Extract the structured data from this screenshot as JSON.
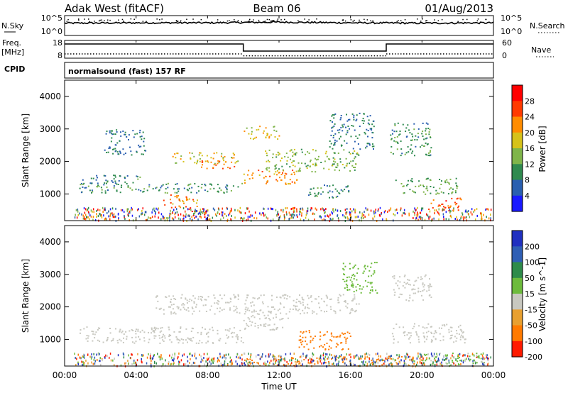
{
  "header": {
    "station": "Adak West (fitACF)",
    "beam": "Beam 06",
    "date": "01/Aug/2013"
  },
  "strip_labels": {
    "nsky": "N.Sky",
    "nsky_ticks": [
      "10^5",
      "10^0"
    ],
    "nsearch": "N.Search",
    "nsearch_ticks": [
      "10^5",
      "10^0"
    ],
    "freq_title": "Freq.",
    "freq_unit": "[MHz]",
    "freq_ticks": [
      "18",
      "8"
    ],
    "nave": "Nave",
    "nave_ticks": [
      "60",
      "0"
    ],
    "cpid": "CPID",
    "cpid_text": "normalsound (fast) 157 RF"
  },
  "chart_data": [
    {
      "type": "line",
      "title": "N.Sky / N.Search",
      "ylabel": "N.Sky",
      "y2label": "N.Search",
      "x_hours": [
        0,
        4,
        8,
        12,
        16,
        20,
        24
      ],
      "sky_level_log": [
        3.2,
        3.3,
        3.3,
        3.5,
        3.3,
        3.2,
        3.3
      ]
    },
    {
      "type": "line",
      "title": "Freq. / Nave",
      "ylabel": "Freq. [MHz]",
      "y2label": "Nave",
      "ylim": [
        8,
        18
      ],
      "freq_segments": [
        {
          "x0": 0,
          "x1": 10,
          "y": 17
        },
        {
          "x0": 10,
          "x1": 18,
          "y": 12
        },
        {
          "x0": 18,
          "x1": 24,
          "y": 17
        }
      ],
      "nave_segments": [
        {
          "x0": 0,
          "x1": 10,
          "y": 12
        },
        {
          "x0": 10,
          "x1": 18,
          "y": 4
        },
        {
          "x0": 18,
          "x1": 24,
          "y": 12
        }
      ]
    },
    {
      "type": "heatmap",
      "title": "Power",
      "ylabel": "Slant Range [km]",
      "ylim": [
        180,
        4500
      ],
      "yticks": [
        "1000",
        "2000",
        "3000",
        "4000"
      ],
      "colorbar_title": "Power [dB]",
      "colorbar_ticks": [
        "4",
        "8",
        "12",
        "16",
        "20",
        "24",
        "28"
      ],
      "colors": [
        "#1a1aff",
        "#2a5fb0",
        "#2f8a4f",
        "#7fb54a",
        "#d6c21a",
        "#ff8c00",
        "#ff3a00",
        "#ff0000"
      ],
      "regions": [
        {
          "x": [
            0.8,
            10.0
          ],
          "y": [
            1050,
            1350
          ],
          "p": 10
        },
        {
          "x": [
            0.8,
            4.2
          ],
          "y": [
            1300,
            1600
          ],
          "p": 9
        },
        {
          "x": [
            5.5,
            7.5
          ],
          "y": [
            600,
            1000
          ],
          "p": 22
        },
        {
          "x": [
            6.6,
            8.0
          ],
          "y": [
            300,
            600
          ],
          "p": 26
        },
        {
          "x": [
            6.0,
            9.8
          ],
          "y": [
            1950,
            2300
          ],
          "p": 18
        },
        {
          "x": [
            7.6,
            9.5
          ],
          "y": [
            1800,
            2050
          ],
          "p": 24
        },
        {
          "x": [
            10.0,
            13.0
          ],
          "y": [
            1300,
            1750
          ],
          "p": 22
        },
        {
          "x": [
            11.2,
            16.5
          ],
          "y": [
            1700,
            2400
          ],
          "p": 14
        },
        {
          "x": [
            10.0,
            12.0
          ],
          "y": [
            2700,
            3100
          ],
          "p": 18
        },
        {
          "x": [
            14.8,
            17.3
          ],
          "y": [
            2400,
            3500
          ],
          "p": 8
        },
        {
          "x": [
            18.5,
            22.0
          ],
          "y": [
            1000,
            1500
          ],
          "p": 12
        },
        {
          "x": [
            20.2,
            22.2
          ],
          "y": [
            500,
            900
          ],
          "p": 25
        },
        {
          "x": [
            18.2,
            20.5
          ],
          "y": [
            2200,
            3200
          ],
          "p": 10
        },
        {
          "x": [
            13.5,
            16.0
          ],
          "y": [
            900,
            1300
          ],
          "p": 9
        },
        {
          "x": [
            2.2,
            4.5
          ],
          "y": [
            2200,
            3000
          ],
          "p": 8
        }
      ]
    },
    {
      "type": "heatmap",
      "title": "Velocity",
      "ylabel": "Slant Range [km]",
      "ylim": [
        180,
        4500
      ],
      "yticks": [
        "1000",
        "2000",
        "3000",
        "4000"
      ],
      "colorbar_title": "Velocity [m s^-1]",
      "colorbar_ticks": [
        "200",
        "100",
        "50",
        "15",
        "-15",
        "-50",
        "-100",
        "-200"
      ],
      "colors": [
        "#2030c0",
        "#2f5fb5",
        "#2e8b4a",
        "#6dbb3c",
        "#c8c8c0",
        "#e8a030",
        "#ff7a00",
        "#ff1a00"
      ],
      "regions": [
        {
          "x": [
            0.8,
            10.0
          ],
          "y": [
            900,
            1400
          ],
          "v": 0
        },
        {
          "x": [
            5.0,
            9.8
          ],
          "y": [
            1800,
            2400
          ],
          "v": 0
        },
        {
          "x": [
            10.0,
            16.5
          ],
          "y": [
            1800,
            2400
          ],
          "v": 0
        },
        {
          "x": [
            10.0,
            12.5
          ],
          "y": [
            1300,
            1800
          ],
          "v": 0
        },
        {
          "x": [
            13.0,
            16.0
          ],
          "y": [
            700,
            1300
          ],
          "v": -80
        },
        {
          "x": [
            15.5,
            17.5
          ],
          "y": [
            2400,
            3400
          ],
          "v": 30
        },
        {
          "x": [
            18.3,
            22.5
          ],
          "y": [
            900,
            1500
          ],
          "v": 0
        },
        {
          "x": [
            18.3,
            20.5
          ],
          "y": [
            2200,
            3000
          ],
          "v": 0
        },
        {
          "x": [
            10.0,
            20.0
          ],
          "y": [
            200,
            500
          ],
          "v": -60
        },
        {
          "x": [
            20.0,
            23.5
          ],
          "y": [
            200,
            600
          ],
          "v": 20
        }
      ]
    }
  ],
  "x_axis": {
    "ticks": [
      "00:00",
      "04:00",
      "08:00",
      "12:00",
      "16:00",
      "20:00",
      "00:00"
    ],
    "label": "Time UT"
  }
}
